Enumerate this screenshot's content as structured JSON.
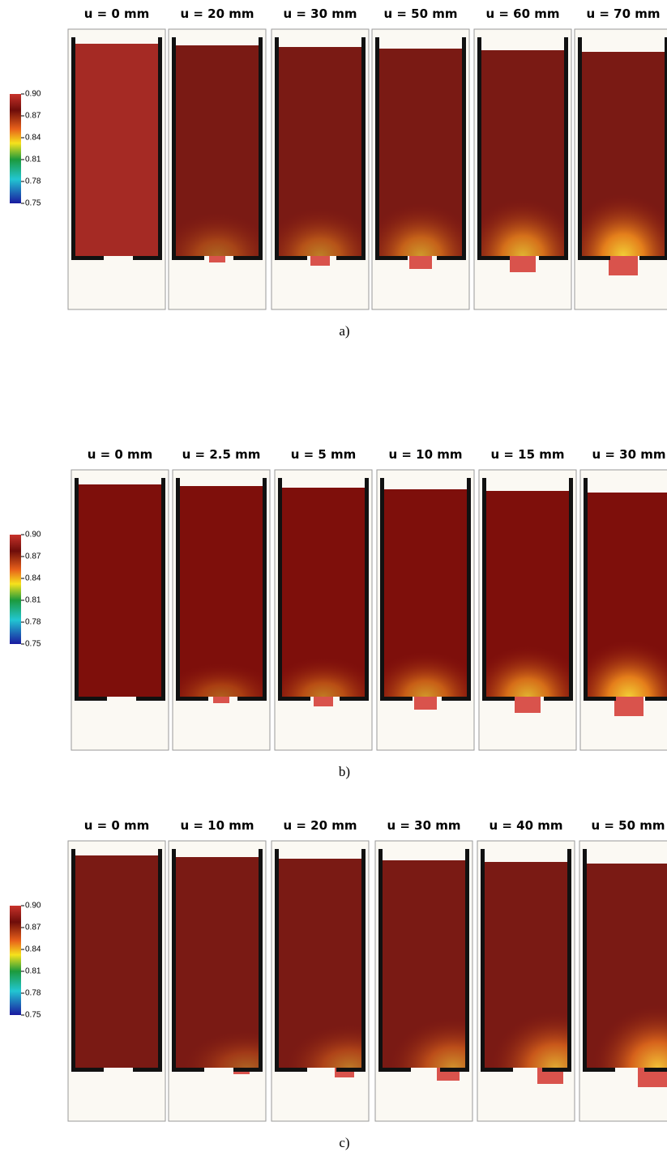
{
  "panels": [
    {
      "caption": "a)",
      "colorbar": [
        "0.90",
        "0.87",
        "0.84",
        "0.81",
        "0.78",
        "0.75"
      ],
      "frames": [
        "u = 0 mm",
        "u = 20 mm",
        "u = 30 mm",
        "u = 50 mm",
        "u = 60 mm",
        "u = 70 mm"
      ]
    },
    {
      "caption": "b)",
      "colorbar": [
        "0.90",
        "0.87",
        "0.84",
        "0.81",
        "0.78",
        "0.75"
      ],
      "frames": [
        "u = 0 mm",
        "u = 2.5 mm",
        "u = 5 mm",
        "u = 10 mm",
        "u = 15 mm",
        "u = 30 mm"
      ]
    },
    {
      "caption": "c)",
      "colorbar": [
        "0.90",
        "0.87",
        "0.84",
        "0.81",
        "0.78",
        "0.75"
      ],
      "frames": [
        "u = 0 mm",
        "u = 10 mm",
        "u = 20 mm",
        "u = 30 mm",
        "u = 40 mm",
        "u = 50 mm"
      ]
    }
  ]
}
